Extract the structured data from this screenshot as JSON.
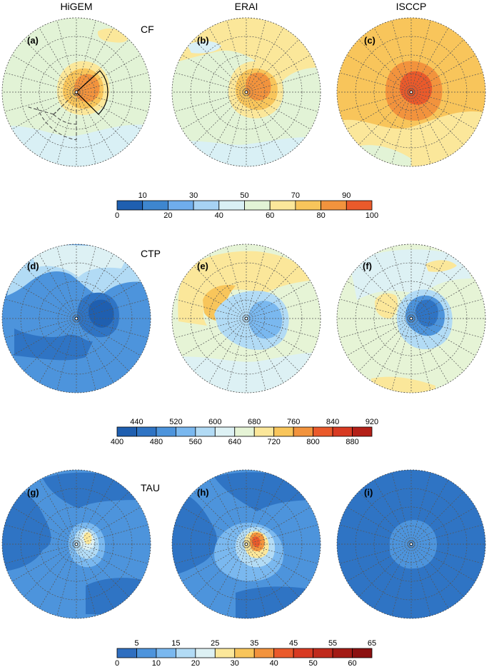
{
  "chart_data": {
    "type": "polar-contour-panels",
    "columns": [
      "HiGEM",
      "ERAI",
      "ISCCP"
    ],
    "rows": [
      {
        "variable": "CF",
        "panels": [
          "(a)",
          "(b)",
          "(c)"
        ],
        "colorbar": {
          "levels": [
            0,
            10,
            20,
            30,
            40,
            50,
            60,
            70,
            80,
            90,
            100
          ],
          "upper_ticks": [
            "10",
            "30",
            "50",
            "70",
            "90"
          ],
          "lower_ticks": [
            "0",
            "20",
            "40",
            "60",
            "80",
            "100"
          ],
          "colors": [
            "#1f5fb0",
            "#3e86cf",
            "#6fadec",
            "#a7d2f3",
            "#d9f0f5",
            "#e2f3d6",
            "#fbe79a",
            "#f8c55b",
            "#f2933d",
            "#ea5a2b"
          ]
        },
        "panel_summary": [
          {
            "background_class": "50-60",
            "core_max_class": "80-90",
            "note": "HiGEM composite with solid and dashed analysis sectors"
          },
          {
            "background_class": "50-60",
            "core_max_class": "80-90"
          },
          {
            "background_class": "70-80",
            "core_max_class": "90-100"
          }
        ]
      },
      {
        "variable": "CTP",
        "panels": [
          "(d)",
          "(e)",
          "(f)"
        ],
        "colorbar": {
          "levels": [
            400,
            440,
            480,
            520,
            560,
            600,
            640,
            680,
            720,
            760,
            800,
            840,
            880,
            920
          ],
          "upper_ticks": [
            "440",
            "520",
            "600",
            "680",
            "760",
            "840",
            "920"
          ],
          "lower_ticks": [
            "400",
            "480",
            "560",
            "640",
            "720",
            "800",
            "880"
          ],
          "colors": [
            "#1f5fb0",
            "#2f74c4",
            "#4d94dc",
            "#7ab8ef",
            "#b2dbf5",
            "#ddf1f4",
            "#e6f4d6",
            "#fbe79a",
            "#f8c55b",
            "#f2933d",
            "#ea5a2b",
            "#d83a22",
            "#b42018"
          ]
        },
        "panel_summary": [
          {
            "background_class": "480-520",
            "core_min_class": "400-440"
          },
          {
            "background_class": "600-640",
            "core_min_class": "520-560"
          },
          {
            "background_class": "600-640",
            "core_min_class": "440-480"
          }
        ]
      },
      {
        "variable": "TAU",
        "panels": [
          "(g)",
          "(h)",
          "(i)"
        ],
        "colorbar": {
          "levels": [
            0,
            5,
            10,
            15,
            20,
            25,
            30,
            35,
            40,
            45,
            50,
            55,
            60,
            65
          ],
          "upper_ticks": [
            "5",
            "15",
            "25",
            "35",
            "45",
            "55",
            "65"
          ],
          "lower_ticks": [
            "0",
            "10",
            "20",
            "30",
            "40",
            "50",
            "60"
          ],
          "colors": [
            "#2f6fc0",
            "#4d94dc",
            "#7ab8ef",
            "#b2dbf5",
            "#ddf1f4",
            "#fbe79a",
            "#f8c55b",
            "#f2933d",
            "#ea5a2b",
            "#d83a22",
            "#c02a1c",
            "#a31a14",
            "#8c1010"
          ]
        },
        "panel_summary": [
          {
            "background_class": "5-10",
            "core_max_class": "30-35"
          },
          {
            "background_class": "5-10",
            "core_max_class": "45-50"
          },
          {
            "background_class": "5-10",
            "core_max_class": "10-15"
          }
        ]
      }
    ]
  }
}
